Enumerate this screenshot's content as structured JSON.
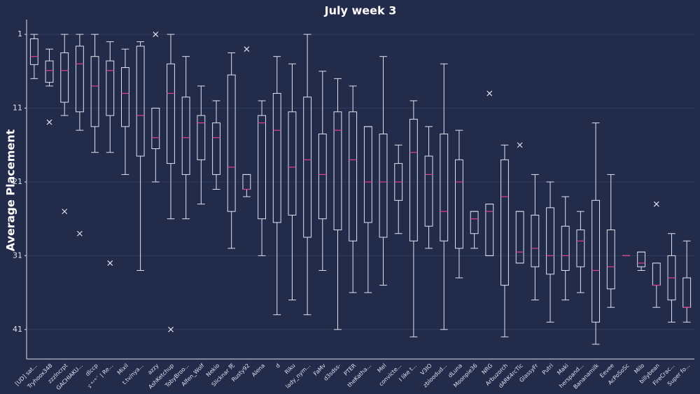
{
  "chart_data": {
    "type": "box",
    "title": "July week 3",
    "y_label": "Average Placement",
    "categories": [
      "[UD] sat...",
      "Tryhoox348",
      "zzzlncrpt",
      "GACHIAKU...",
      "dlccp",
      "ゞ°ᐟ°ˊ | Re...",
      "Mixil",
      "t.tv/nya...",
      "azzy",
      "AshKetchup",
      "TobyBroo...",
      "Alfen_Wolf",
      "Nekio",
      "Slicknar 死",
      "Rusty92",
      "Alena",
      "d",
      "Riku",
      "lady_nym...",
      "FaMv",
      "d3sdss-",
      "PTER",
      "theKatha...",
      "Mel",
      "convicte...",
      "I like t...",
      "V3IO",
      "zbloodud...",
      "dLuna",
      "Moonpie36",
      "NRG",
      "Arbuzorch",
      "dARK4rcTic",
      "GlassyFr",
      "Putri",
      "Maki",
      "herspand...",
      "Bananamilk",
      "Eevee",
      "AcPoSoSc",
      "Milo",
      "billybean",
      "FireCrac...",
      "Super fo..."
    ],
    "boxes": [
      {
        "min": 1,
        "q1": 1.6,
        "median": 4,
        "q3": 5.1,
        "max": 7
      },
      {
        "min": 3,
        "q1": 4.6,
        "median": 5.9,
        "q3": 7.5,
        "max": 8,
        "outliers": [
          12.9
        ]
      },
      {
        "min": 1,
        "q1": 3.5,
        "median": 5.9,
        "q3": 10.2,
        "max": 12,
        "outliers": [
          25
        ]
      },
      {
        "min": 1,
        "q1": 2.6,
        "median": 5,
        "q3": 11.5,
        "max": 14,
        "outliers": [
          28
        ]
      },
      {
        "min": 1,
        "q1": 4,
        "median": 8,
        "q3": 13.5,
        "max": 17
      },
      {
        "min": 2,
        "q1": 4.6,
        "median": 5.9,
        "q3": 12,
        "max": 17,
        "outliers": [
          32
        ]
      },
      {
        "min": 3,
        "q1": 5.5,
        "median": 9,
        "q3": 13.5,
        "max": 20
      },
      {
        "min": 2,
        "q1": 2.6,
        "median": 12,
        "q3": 17.5,
        "max": 33
      },
      {
        "min": 11,
        "q1": 11,
        "median": 15,
        "q3": 16.5,
        "max": 21,
        "outliers": [
          1
        ]
      },
      {
        "min": 1,
        "q1": 5,
        "median": 9,
        "q3": 18.5,
        "max": 26,
        "outliers": [
          41
        ]
      },
      {
        "min": 4,
        "q1": 9.5,
        "median": 15,
        "q3": 20,
        "max": 26
      },
      {
        "min": 8,
        "q1": 12,
        "median": 13,
        "q3": 18,
        "max": 24
      },
      {
        "min": 10,
        "q1": 13,
        "median": 15,
        "q3": 20,
        "max": 22
      },
      {
        "min": 3.5,
        "q1": 6.5,
        "median": 19,
        "q3": 25,
        "max": 30
      },
      {
        "min": 20,
        "q1": 20,
        "median": 22,
        "q3": 22,
        "max": 23,
        "outliers": [
          3
        ]
      },
      {
        "min": 10,
        "q1": 12,
        "median": 13,
        "q3": 26,
        "max": 31
      },
      {
        "min": 4,
        "q1": 9,
        "median": 14,
        "q3": 26.5,
        "max": 39
      },
      {
        "min": 5,
        "q1": 11.5,
        "median": 19,
        "q3": 25.5,
        "max": 37
      },
      {
        "min": 1,
        "q1": 9.5,
        "median": 18,
        "q3": 28.5,
        "max": 39
      },
      {
        "min": 6,
        "q1": 14.5,
        "median": 20,
        "q3": 26,
        "max": 33
      },
      {
        "min": 7,
        "q1": 11.5,
        "median": 14,
        "q3": 27.5,
        "max": 41
      },
      {
        "min": 8,
        "q1": 11.5,
        "median": 18,
        "q3": 29,
        "max": 36
      },
      {
        "min": 13.5,
        "q1": 13.5,
        "median": 21,
        "q3": 26.5,
        "max": 36
      },
      {
        "min": 4,
        "q1": 14.5,
        "median": 21,
        "q3": 28.5,
        "max": 35
      },
      {
        "min": 16,
        "q1": 18.5,
        "median": 21,
        "q3": 23.5,
        "max": 28
      },
      {
        "min": 10,
        "q1": 12.5,
        "median": 17,
        "q3": 29,
        "max": 42
      },
      {
        "min": 13.5,
        "q1": 17.5,
        "median": 20,
        "q3": 27,
        "max": 30
      },
      {
        "min": 5,
        "q1": 14.5,
        "median": 25,
        "q3": 29,
        "max": 41
      },
      {
        "min": 14,
        "q1": 18,
        "median": 21,
        "q3": 30,
        "max": 34
      },
      {
        "min": 25,
        "q1": 25,
        "median": 26,
        "q3": 28,
        "max": 30
      },
      {
        "min": 24,
        "q1": 24,
        "median": 25,
        "q3": 31,
        "max": 31,
        "outliers": [
          9
        ]
      },
      {
        "min": 16,
        "q1": 18,
        "median": 23,
        "q3": 35,
        "max": 42
      },
      {
        "min": 25,
        "q1": 25,
        "median": 30.5,
        "q3": 32,
        "max": 32,
        "outliers": [
          16
        ]
      },
      {
        "min": 20,
        "q1": 25.5,
        "median": 30,
        "q3": 32.5,
        "max": 37
      },
      {
        "min": 21,
        "q1": 24.5,
        "median": 31,
        "q3": 33.5,
        "max": 40
      },
      {
        "min": 23,
        "q1": 27,
        "median": 31,
        "q3": 33,
        "max": 37
      },
      {
        "min": 25,
        "q1": 27.5,
        "median": 29,
        "q3": 32.5,
        "max": 36
      },
      {
        "min": 13,
        "q1": 23.5,
        "median": 33,
        "q3": 40,
        "max": 43
      },
      {
        "min": 20,
        "q1": 27.5,
        "median": 32.5,
        "q3": 35.5,
        "max": 38
      },
      {
        "min": 31,
        "q1": 31,
        "median": 31,
        "q3": 31,
        "max": 31
      },
      {
        "min": 30.5,
        "q1": 30.5,
        "median": 32,
        "q3": 32.5,
        "max": 33
      },
      {
        "min": 32,
        "q1": 32,
        "median": 35,
        "q3": 35,
        "max": 38,
        "outliers": [
          24
        ]
      },
      {
        "min": 28,
        "q1": 31,
        "median": 34,
        "q3": 37,
        "max": 40
      },
      {
        "min": 29,
        "q1": 34,
        "median": 38,
        "q3": 38,
        "max": 40
      }
    ],
    "ylim": [
      -1,
      45
    ],
    "y_inverted": true,
    "yticks": [
      1,
      11,
      21,
      31,
      41
    ],
    "grid": true,
    "box_color": "#dfe3ee",
    "median_color": "#e0408f"
  }
}
